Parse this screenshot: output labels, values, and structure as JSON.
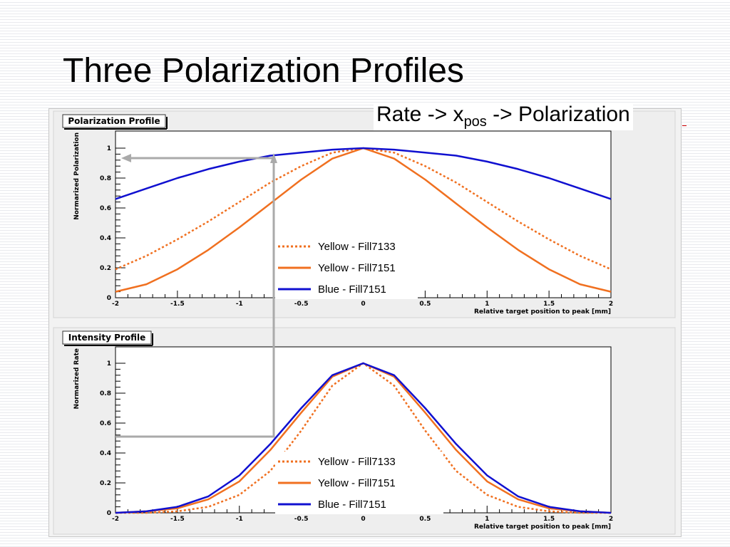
{
  "slide": {
    "title": "Three Polarization Profiles",
    "caption": {
      "prefix": "Rate -> x",
      "sub": "pos",
      "suffix": " -> Polarization"
    }
  },
  "colors": {
    "yellow": "#f07020",
    "blue": "#1010d0",
    "arrow": "#aaaaaa",
    "panel_bg": "#f2f2f2"
  },
  "chart_data": [
    {
      "type": "line",
      "title": "Polarization Profile",
      "xlabel": "Relative target position to peak [mm]",
      "ylabel": "Normarized Polarization",
      "xlim": [
        -2,
        2
      ],
      "ylim": [
        0,
        1.02
      ],
      "xticks": [
        "-2",
        "-1.5",
        "-1",
        "-0.5",
        "0",
        "0.5",
        "1",
        "1.5",
        "2"
      ],
      "yticks": [
        "0",
        "0.2",
        "0.4",
        "0.6",
        "0.8",
        "1"
      ],
      "grid": false,
      "legend": "center",
      "x": [
        -2.0,
        -1.75,
        -1.5,
        -1.25,
        -1.0,
        -0.75,
        -0.5,
        -0.25,
        0.0,
        0.25,
        0.5,
        0.75,
        1.0,
        1.25,
        1.5,
        1.75,
        2.0
      ],
      "series": [
        {
          "name": "Yellow - Fill7133",
          "style": "dotted",
          "color": "#f07020",
          "values": [
            0.19,
            0.28,
            0.39,
            0.51,
            0.64,
            0.77,
            0.88,
            0.97,
            1.0,
            0.97,
            0.88,
            0.77,
            0.64,
            0.51,
            0.39,
            0.28,
            0.19
          ]
        },
        {
          "name": "Yellow - Fill7151",
          "style": "solid",
          "color": "#f07020",
          "values": [
            0.04,
            0.09,
            0.19,
            0.32,
            0.47,
            0.63,
            0.79,
            0.93,
            1.0,
            0.93,
            0.79,
            0.63,
            0.47,
            0.32,
            0.19,
            0.09,
            0.04
          ]
        },
        {
          "name": "Blue - Fill7151",
          "style": "solid",
          "color": "#1010d0",
          "values": [
            0.66,
            0.73,
            0.8,
            0.86,
            0.91,
            0.95,
            0.97,
            0.99,
            1.0,
            0.99,
            0.97,
            0.95,
            0.91,
            0.86,
            0.8,
            0.73,
            0.66
          ]
        }
      ]
    },
    {
      "type": "line",
      "title": "Intensity Profile",
      "xlabel": "Relative target position to peak [mm]",
      "ylabel": "Normarized Rate",
      "xlim": [
        -2,
        2
      ],
      "ylim": [
        0,
        1.02
      ],
      "xticks": [
        "-2",
        "-1.5",
        "-1",
        "-0.5",
        "0",
        "0.5",
        "1",
        "1.5",
        "2"
      ],
      "yticks": [
        "0",
        "0.2",
        "0.4",
        "0.6",
        "0.8",
        "1"
      ],
      "grid": false,
      "legend": "center",
      "x": [
        -2.0,
        -1.75,
        -1.5,
        -1.25,
        -1.0,
        -0.75,
        -0.5,
        -0.25,
        0.0,
        0.25,
        0.5,
        0.75,
        1.0,
        1.25,
        1.5,
        1.75,
        2.0
      ],
      "series": [
        {
          "name": "Yellow - Fill7133",
          "style": "dotted",
          "color": "#f07020",
          "values": [
            0.0,
            0.0,
            0.01,
            0.04,
            0.12,
            0.28,
            0.55,
            0.85,
            1.0,
            0.85,
            0.55,
            0.28,
            0.12,
            0.04,
            0.01,
            0.0,
            0.0
          ]
        },
        {
          "name": "Yellow - Fill7151",
          "style": "solid",
          "color": "#f07020",
          "values": [
            0.0,
            0.01,
            0.03,
            0.09,
            0.21,
            0.42,
            0.67,
            0.91,
            1.0,
            0.91,
            0.67,
            0.42,
            0.21,
            0.09,
            0.03,
            0.01,
            0.0
          ]
        },
        {
          "name": "Blue - Fill7151",
          "style": "solid",
          "color": "#1010d0",
          "values": [
            0.0,
            0.01,
            0.04,
            0.11,
            0.25,
            0.46,
            0.7,
            0.92,
            1.0,
            0.92,
            0.7,
            0.46,
            0.25,
            0.11,
            0.04,
            0.01,
            0.0
          ]
        }
      ]
    }
  ]
}
